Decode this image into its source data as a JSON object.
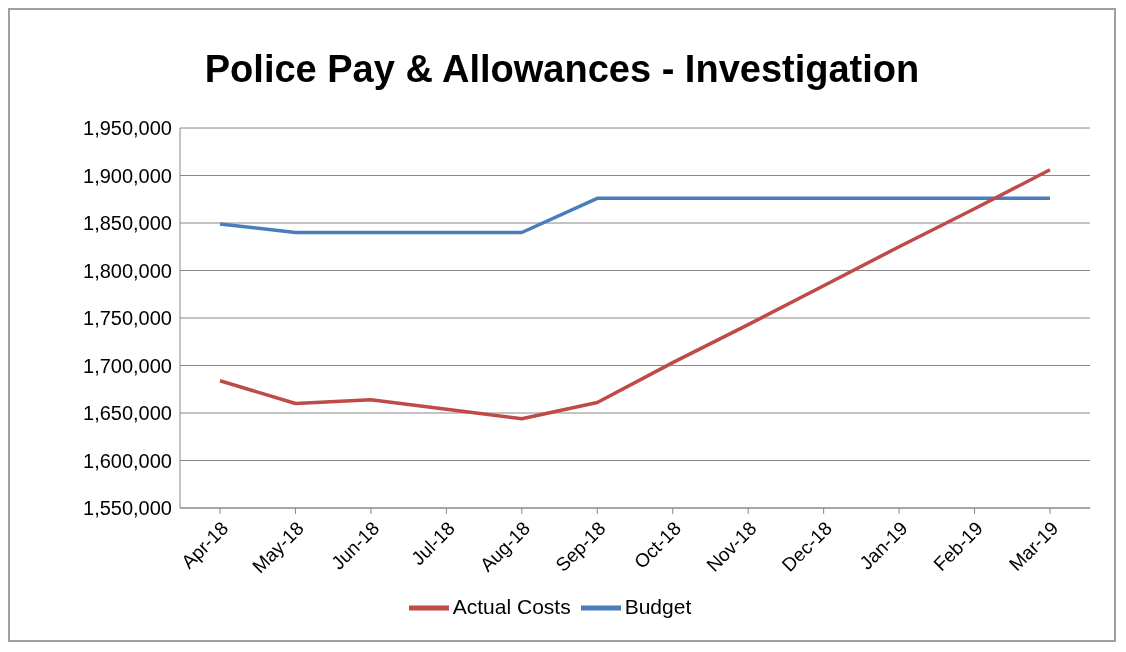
{
  "chart_data": {
    "type": "line",
    "title": "Police Pay & Allowances - Investigation",
    "categories": [
      "Apr-18",
      "May-18",
      "Jun-18",
      "Jul-18",
      "Aug-18",
      "Sep-18",
      "Oct-18",
      "Nov-18",
      "Dec-18",
      "Jan-19",
      "Feb-19",
      "Mar-19"
    ],
    "series": [
      {
        "name": "Budget",
        "color": "#4a7ebb",
        "values": [
          1849000,
          1840000,
          1840000,
          1840000,
          1840000,
          1876000,
          1876000,
          1876000,
          1876000,
          1876000,
          1876000,
          1876000
        ]
      },
      {
        "name": "Actual Costs",
        "color": "#be4b48",
        "values": [
          1684000,
          1660000,
          1664000,
          1654000,
          1644000,
          1661000,
          1703000,
          1743000,
          1784000,
          1825000,
          1865000,
          1906000
        ]
      }
    ],
    "ylim": [
      1550000,
      1950000
    ],
    "yticks": [
      {
        "value": 1550000,
        "label": "1,550,000"
      },
      {
        "value": 1600000,
        "label": "1,600,000"
      },
      {
        "value": 1650000,
        "label": "1,650,000"
      },
      {
        "value": 1700000,
        "label": "1,700,000"
      },
      {
        "value": 1750000,
        "label": "1,750,000"
      },
      {
        "value": 1800000,
        "label": "1,800,000"
      },
      {
        "value": 1850000,
        "label": "1,850,000"
      },
      {
        "value": 1900000,
        "label": "1,900,000"
      },
      {
        "value": 1950000,
        "label": "1,950,000"
      }
    ],
    "grid": "y",
    "legend": "bottom",
    "marker": "none",
    "line_style": "solid"
  }
}
